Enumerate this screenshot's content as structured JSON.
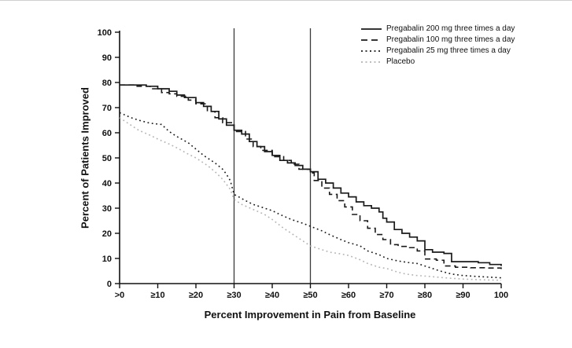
{
  "chart_data": {
    "type": "line",
    "title": "",
    "xlabel": "Percent Improvement in Pain from Baseline",
    "ylabel": "Percent of Patients Improved",
    "xlim": [
      0,
      100
    ],
    "ylim": [
      0,
      100
    ],
    "grid": false,
    "legend_position": "top-right",
    "x_ticks": [
      {
        "v": 0,
        "label": ">0"
      },
      {
        "v": 10,
        "label": "≥10"
      },
      {
        "v": 20,
        "label": "≥20"
      },
      {
        "v": 30,
        "label": "≥30"
      },
      {
        "v": 40,
        "label": "≥40"
      },
      {
        "v": 50,
        "label": "≥50"
      },
      {
        "v": 60,
        "label": "≥60"
      },
      {
        "v": 70,
        "label": "≥70"
      },
      {
        "v": 80,
        "label": "≥80"
      },
      {
        "v": 90,
        "label": "≥90"
      },
      {
        "v": 100,
        "label": "100"
      }
    ],
    "y_ticks": [
      0,
      10,
      20,
      30,
      40,
      50,
      60,
      70,
      80,
      90,
      100
    ],
    "reference_lines_x": [
      30,
      50
    ],
    "series": [
      {
        "name": "Pregabalin 200 mg three times a day",
        "line": "solid",
        "interpolation": "step",
        "color": "#1a1a1a",
        "points": [
          [
            0,
            79
          ],
          [
            4,
            79
          ],
          [
            7,
            78.5
          ],
          [
            10,
            77.5
          ],
          [
            13,
            76.5
          ],
          [
            15,
            75
          ],
          [
            17,
            74
          ],
          [
            20,
            72
          ],
          [
            22,
            70.5
          ],
          [
            24,
            68.5
          ],
          [
            26,
            65.5
          ],
          [
            28,
            63
          ],
          [
            30,
            61
          ],
          [
            32,
            59.5
          ],
          [
            34,
            56.5
          ],
          [
            36,
            54.5
          ],
          [
            38,
            52.5
          ],
          [
            40,
            51
          ],
          [
            42,
            49
          ],
          [
            44,
            48
          ],
          [
            46,
            47
          ],
          [
            48,
            45.5
          ],
          [
            50,
            44.5
          ],
          [
            52,
            41.5
          ],
          [
            54,
            40
          ],
          [
            56,
            38
          ],
          [
            58,
            36
          ],
          [
            60,
            34.5
          ],
          [
            62,
            32.5
          ],
          [
            64,
            31
          ],
          [
            66,
            30
          ],
          [
            68,
            28.5
          ],
          [
            69,
            26
          ],
          [
            70,
            24.5
          ],
          [
            72,
            21.5
          ],
          [
            74,
            20
          ],
          [
            76,
            18.5
          ],
          [
            78,
            17
          ],
          [
            80,
            13.5
          ],
          [
            82,
            12.5
          ],
          [
            85,
            12
          ],
          [
            87,
            8.7
          ],
          [
            91,
            8.7
          ],
          [
            94,
            8.3
          ],
          [
            97,
            7.6
          ],
          [
            100,
            7
          ]
        ]
      },
      {
        "name": "Pregabalin 100 mg three times a day",
        "line": "dashed",
        "interpolation": "step",
        "color": "#1a1a1a",
        "points": [
          [
            0,
            79
          ],
          [
            4,
            78.5
          ],
          [
            8,
            77.5
          ],
          [
            11,
            76
          ],
          [
            13,
            75.5
          ],
          [
            15,
            74.5
          ],
          [
            18,
            73
          ],
          [
            20,
            71.5
          ],
          [
            23,
            68.5
          ],
          [
            25,
            66
          ],
          [
            27,
            64
          ],
          [
            30,
            60.5
          ],
          [
            33,
            57.5
          ],
          [
            35,
            54.5
          ],
          [
            37,
            53
          ],
          [
            40,
            50.5
          ],
          [
            43,
            49
          ],
          [
            45,
            47.5
          ],
          [
            47,
            45.5
          ],
          [
            50,
            44
          ],
          [
            51,
            41
          ],
          [
            53,
            38
          ],
          [
            55,
            35.5
          ],
          [
            57,
            33
          ],
          [
            59,
            30.5
          ],
          [
            61,
            27.5
          ],
          [
            63,
            25
          ],
          [
            65,
            22
          ],
          [
            67,
            19.5
          ],
          [
            69,
            17.5
          ],
          [
            71,
            15.5
          ],
          [
            73,
            14.8
          ],
          [
            76,
            14.3
          ],
          [
            78,
            13
          ],
          [
            80,
            9.8
          ],
          [
            83,
            9.3
          ],
          [
            85,
            7
          ],
          [
            88,
            6.5
          ],
          [
            92,
            6.3
          ],
          [
            96,
            6.2
          ],
          [
            100,
            5.8
          ]
        ]
      },
      {
        "name": "Pregabalin 25 mg three times a day",
        "line": "dotted",
        "interpolation": "linear",
        "color": "#1a1a1a",
        "points": [
          [
            0,
            68
          ],
          [
            3,
            66
          ],
          [
            5,
            65
          ],
          [
            8,
            63.8
          ],
          [
            11,
            63.3
          ],
          [
            13,
            60.5
          ],
          [
            15,
            58.5
          ],
          [
            18,
            56
          ],
          [
            20,
            53.5
          ],
          [
            22,
            51
          ],
          [
            25,
            48
          ],
          [
            27,
            45.5
          ],
          [
            28,
            43.5
          ],
          [
            29,
            41
          ],
          [
            30,
            35.5
          ],
          [
            33,
            33
          ],
          [
            35,
            31.5
          ],
          [
            38,
            30
          ],
          [
            40,
            29
          ],
          [
            42,
            27.5
          ],
          [
            45,
            25.5
          ],
          [
            48,
            24
          ],
          [
            50,
            22.8
          ],
          [
            53,
            21
          ],
          [
            55,
            19.5
          ],
          [
            58,
            17.5
          ],
          [
            60,
            16.3
          ],
          [
            63,
            15
          ],
          [
            65,
            13
          ],
          [
            68,
            11.5
          ],
          [
            70,
            10
          ],
          [
            73,
            9
          ],
          [
            76,
            8.3
          ],
          [
            78,
            8
          ],
          [
            80,
            7
          ],
          [
            82,
            6
          ],
          [
            84,
            5
          ],
          [
            87,
            3.8
          ],
          [
            90,
            3.2
          ],
          [
            94,
            2.8
          ],
          [
            100,
            2.3
          ]
        ]
      },
      {
        "name": "Placebo",
        "line": "dotted",
        "interpolation": "linear",
        "color": "#b3b3b3",
        "points": [
          [
            0,
            66
          ],
          [
            3,
            63
          ],
          [
            5,
            61
          ],
          [
            8,
            59
          ],
          [
            10,
            57.5
          ],
          [
            13,
            55.5
          ],
          [
            15,
            54
          ],
          [
            18,
            51.5
          ],
          [
            20,
            50
          ],
          [
            23,
            47
          ],
          [
            25,
            44.5
          ],
          [
            27,
            41.5
          ],
          [
            29,
            37.5
          ],
          [
            30,
            33.5
          ],
          [
            32,
            31.5
          ],
          [
            35,
            29.5
          ],
          [
            38,
            27.5
          ],
          [
            40,
            25.5
          ],
          [
            43,
            22
          ],
          [
            45,
            20
          ],
          [
            48,
            17
          ],
          [
            50,
            15
          ],
          [
            53,
            13.5
          ],
          [
            55,
            12.5
          ],
          [
            58,
            11.8
          ],
          [
            60,
            11.2
          ],
          [
            63,
            9.5
          ],
          [
            65,
            8
          ],
          [
            68,
            6.5
          ],
          [
            70,
            6
          ],
          [
            73,
            4.5
          ],
          [
            75,
            3.8
          ],
          [
            78,
            3.2
          ],
          [
            80,
            3
          ],
          [
            83,
            2.6
          ],
          [
            86,
            2.2
          ],
          [
            90,
            1.8
          ],
          [
            95,
            1.5
          ],
          [
            100,
            1.3
          ]
        ]
      }
    ]
  },
  "colors": {
    "axis": "#111111",
    "tick_label": "#111111",
    "reference_line": "#3a3a3a",
    "top_border": "#cfcfcf",
    "background": "#ffffff"
  }
}
